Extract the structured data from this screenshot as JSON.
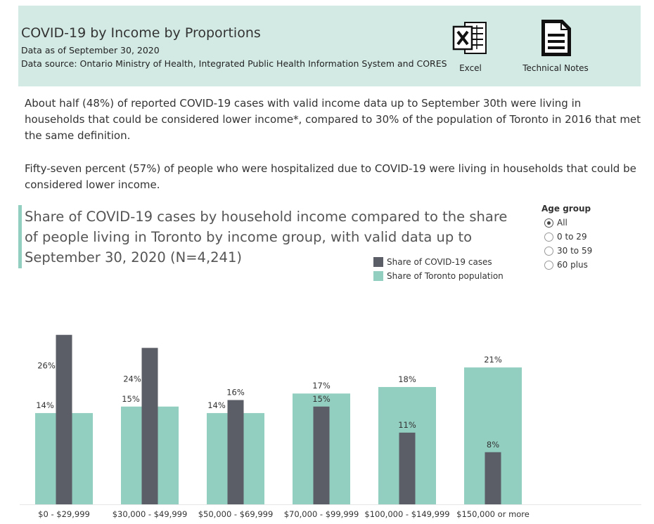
{
  "header": {
    "title": "COVID-19 by Income by Proportions",
    "data_date": "Data as of September 30, 2020",
    "data_source": "Data source: Ontario Ministry of Health, Integrated Public Health Information System and CORES",
    "excel_label": "Excel",
    "notes_label": "Technical Notes",
    "excel_icon": "excel-icon",
    "notes_icon": "document-icon"
  },
  "paragraphs": [
    "About half (48%) of reported COVID-19 cases with valid income data up to September 30th were living in households that could be considered lower income*, compared to 30% of the population of Toronto in 2016 that met the same definition.",
    "Fifty-seven percent (57%) of people who were hospitalized due to COVID-19 were living in households that could be considered lower income."
  ],
  "filter": {
    "title": "Age group",
    "options": [
      "All",
      "0 to 29",
      "30 to 59",
      "60 plus"
    ],
    "selected": "All"
  },
  "colors": {
    "cases": "#5b5e66",
    "population": "#93cfc0",
    "header_bg": "#d3eae4"
  },
  "chart_data": {
    "type": "bar",
    "title": "Share of COVID-19 cases by household income compared to the share of people living in Toronto by income group, with valid data up to September 30, 2020 (N=4,241)",
    "categories": [
      "$0 - $29,999",
      "$30,000 - $49,999",
      "$50,000 - $69,999",
      "$70,000 - $99,999",
      "$100,000 - $149,999",
      "$150,000 or more"
    ],
    "series": [
      {
        "name": "Share of COVID-19 cases",
        "values": [
          26,
          24,
          16,
          15,
          11,
          8
        ],
        "labels": [
          "26%",
          "24%",
          "16%",
          "15%",
          "11%",
          "8%"
        ]
      },
      {
        "name": "Share of Toronto population",
        "values": [
          14,
          15,
          14,
          17,
          18,
          21
        ],
        "labels": [
          "14%",
          "15%",
          "14%",
          "17%",
          "18%",
          "21%"
        ]
      }
    ],
    "legend": "top-right",
    "grid": false
  }
}
